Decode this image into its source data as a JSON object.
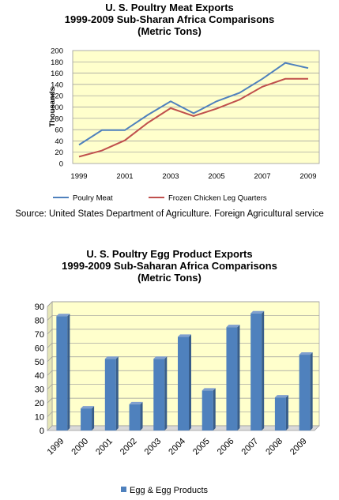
{
  "chart_data": [
    {
      "type": "line",
      "title_lines": [
        "U. S. Poultry Meat Exports",
        "1999-2009 Sub-Sharan Africa Comparisons",
        "(Metric Tons)"
      ],
      "ylabel": "Thousands",
      "xlabel": "",
      "x": [
        1999,
        2000,
        2001,
        2002,
        2003,
        2004,
        2005,
        2006,
        2007,
        2008,
        2009
      ],
      "x_tick_labels": [
        "1999",
        "2001",
        "2003",
        "2005",
        "2007",
        "2009"
      ],
      "ylim": [
        0,
        200
      ],
      "y_ticks": [
        "0",
        "20",
        "40",
        "60",
        "80",
        "100",
        "120",
        "140",
        "160",
        "180",
        "200"
      ],
      "grid": true,
      "legend_position": "bottom",
      "series": [
        {
          "name": "Poulry Meat",
          "color": "#4f81bd",
          "values": [
            33,
            59,
            59,
            86,
            110,
            89,
            110,
            125,
            150,
            178,
            169
          ]
        },
        {
          "name": "Frozen Chicken Leg Quarters",
          "color": "#c0504d",
          "values": [
            12,
            23,
            41,
            72,
            98,
            84,
            97,
            113,
            136,
            150,
            150
          ]
        }
      ]
    },
    {
      "type": "bar",
      "title_lines": [
        "U. S. Poultry Egg Product Exports",
        "1999-2009 Sub-Saharan  Africa Comparisons",
        "(Metric Tons)"
      ],
      "xlabel": "",
      "ylabel": "",
      "categories": [
        "1999",
        "2000",
        "2001",
        "2002",
        "2003",
        "2004",
        "2005",
        "2006",
        "2007",
        "2008",
        "2009"
      ],
      "ylim": [
        0,
        90
      ],
      "y_ticks": [
        "0",
        "10",
        "20",
        "30",
        "40",
        "50",
        "60",
        "70",
        "80",
        "90"
      ],
      "grid": true,
      "legend_position": "bottom",
      "series": [
        {
          "name": "Egg & Egg Products",
          "color": "#4f81bd",
          "values": [
            83,
            16,
            52,
            19,
            52,
            68,
            29,
            75,
            85,
            24,
            55
          ]
        }
      ]
    }
  ],
  "source": "Source: United States Department of Agriculture. Foreign Agricultural service"
}
